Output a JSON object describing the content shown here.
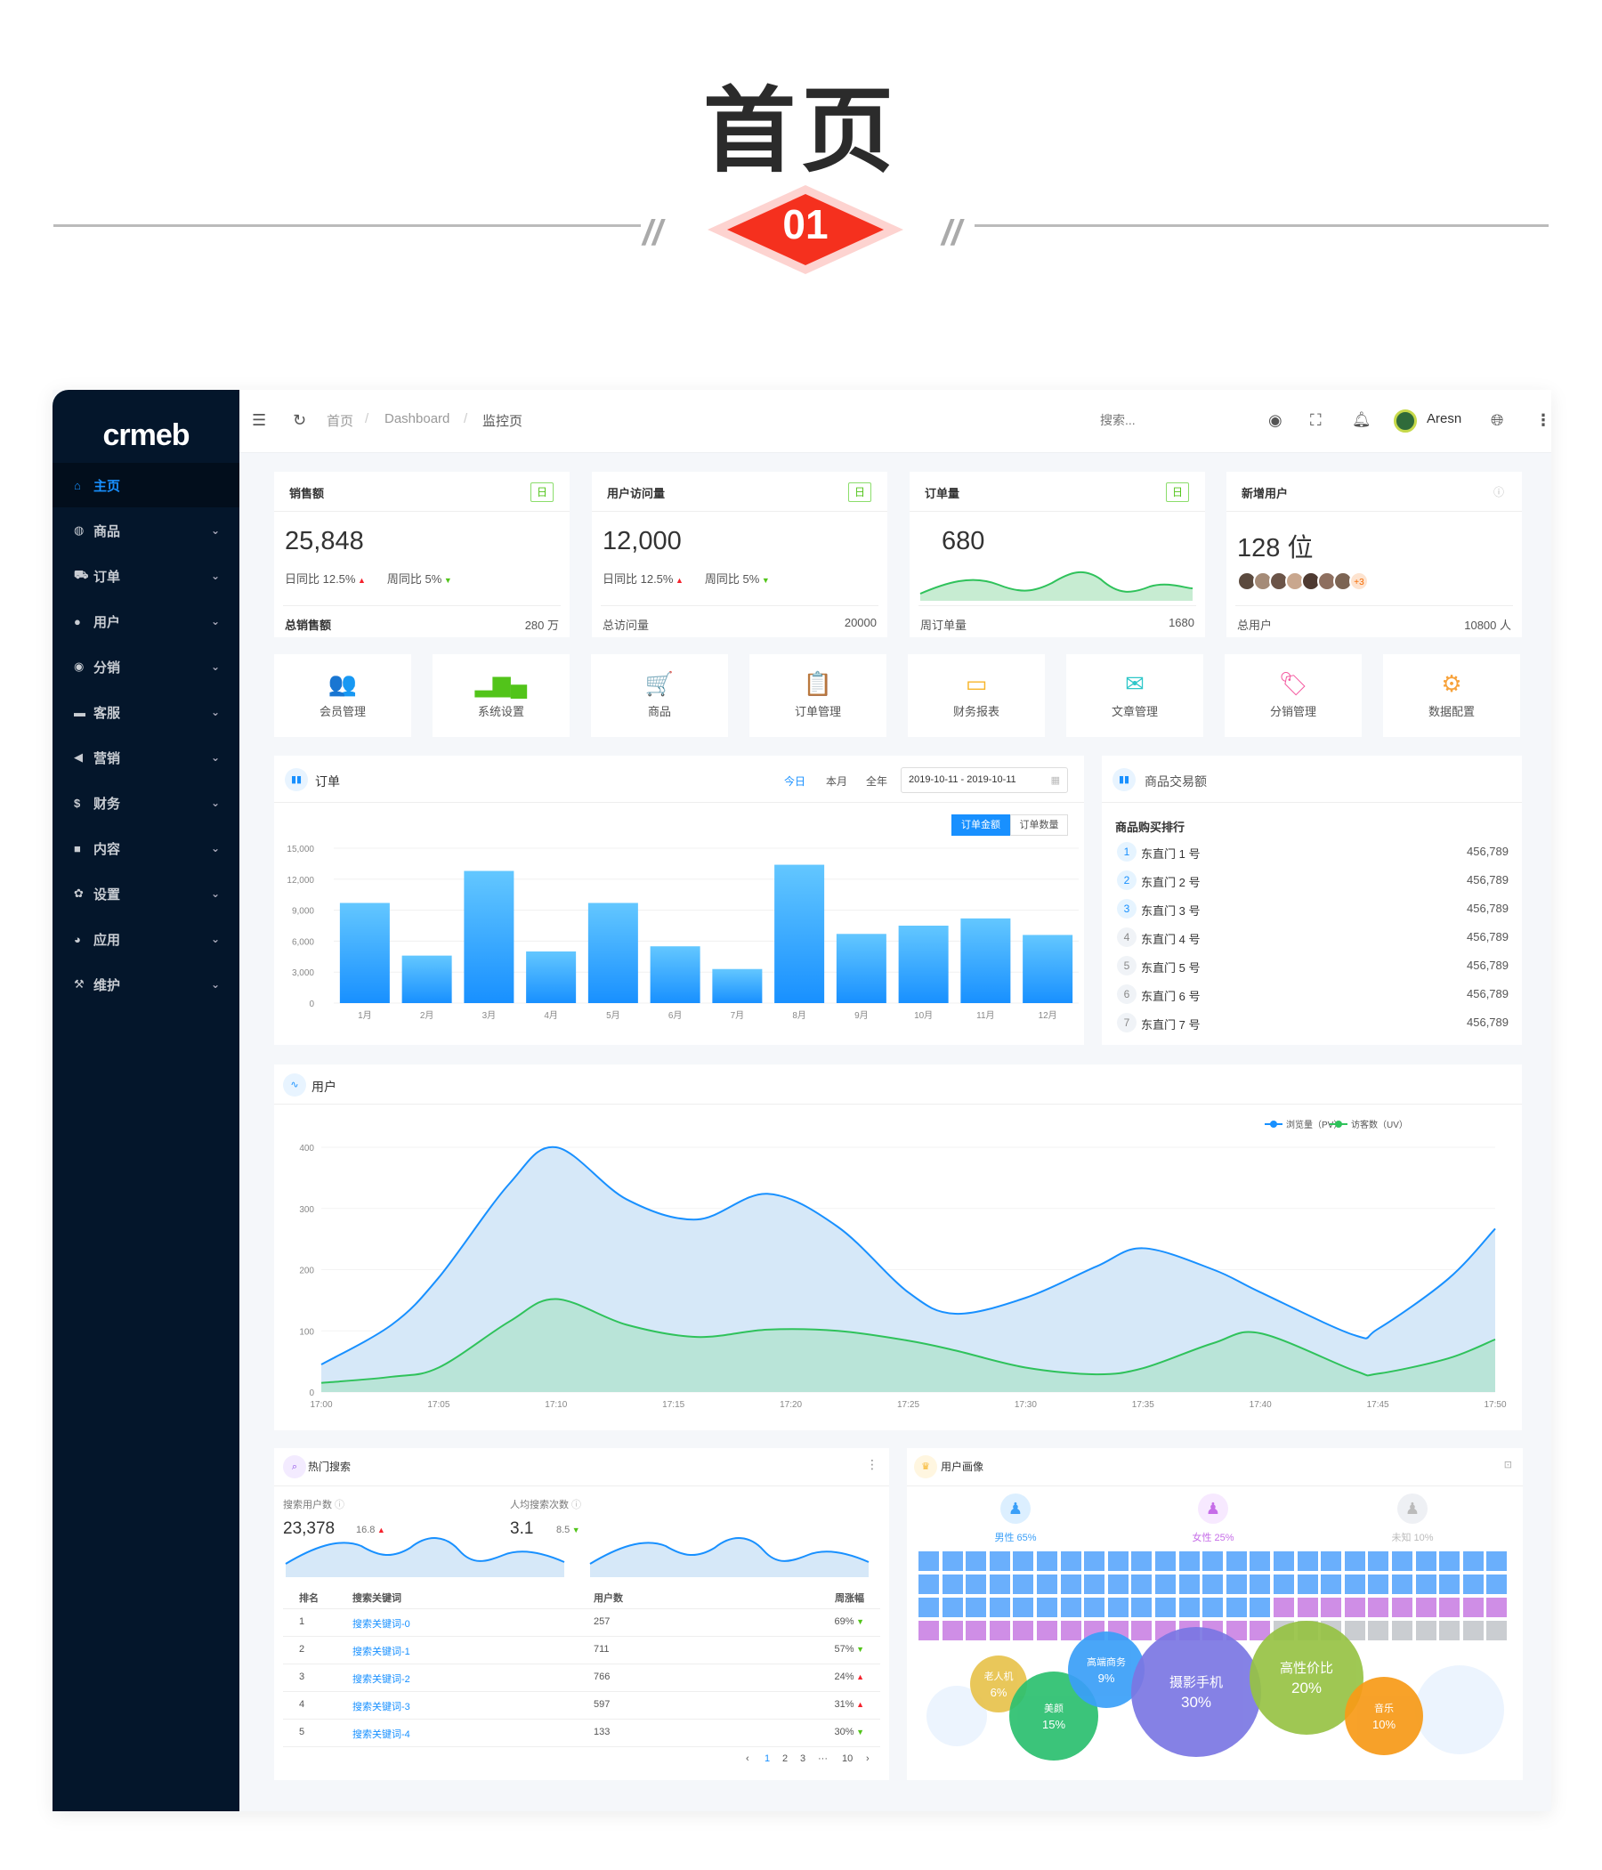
{
  "hero": {
    "title": "首页",
    "number": "01",
    "accent": "#f5301e"
  },
  "sidebar": {
    "logo": "crmeb",
    "items": [
      {
        "label": "主页",
        "icon": "home-icon",
        "glyph": "⌂",
        "active": true
      },
      {
        "label": "商品",
        "icon": "goods-icon",
        "glyph": "◍"
      },
      {
        "label": "订单",
        "icon": "cart-icon",
        "glyph": "⛟"
      },
      {
        "label": "用户",
        "icon": "user-icon",
        "glyph": "●"
      },
      {
        "label": "分销",
        "icon": "distribution-icon",
        "glyph": "◉"
      },
      {
        "label": "客服",
        "icon": "chat-icon",
        "glyph": "▬"
      },
      {
        "label": "营销",
        "icon": "send-icon",
        "glyph": "◀"
      },
      {
        "label": "财务",
        "icon": "dollar-icon",
        "glyph": "$"
      },
      {
        "label": "内容",
        "icon": "book-icon",
        "glyph": "■"
      },
      {
        "label": "设置",
        "icon": "gear-icon",
        "glyph": "✿"
      },
      {
        "label": "应用",
        "icon": "app-icon",
        "glyph": "◕"
      },
      {
        "label": "维护",
        "icon": "hammer-icon",
        "glyph": "⚒"
      }
    ]
  },
  "topbar": {
    "breadcrumb": [
      "首页",
      "Dashboard",
      "监控页"
    ],
    "search_placeholder": "搜索...",
    "user": "Aresn"
  },
  "stats": [
    {
      "title": "销售额",
      "tag": "日",
      "value": "25,848",
      "day": "日同比 12.5%",
      "week": "周同比 5%",
      "foot_label": "总销售额",
      "foot_value": "280 万"
    },
    {
      "title": "用户访问量",
      "tag": "日",
      "value": "12,000",
      "day": "日同比 12.5%",
      "week": "周同比 5%",
      "foot_label": "总访问量",
      "foot_value": "20000"
    },
    {
      "title": "订单量",
      "tag": "日",
      "value": "680",
      "foot_label": "周订单量",
      "foot_value": "1680"
    },
    {
      "title": "新增用户",
      "value": "128 位",
      "extra": "+3",
      "foot_label": "总用户",
      "foot_value": "10800 人"
    }
  ],
  "shortcuts": [
    {
      "label": "会员管理",
      "icon": "members-icon",
      "glyph": "👥",
      "color": "#3a9ff8"
    },
    {
      "label": "系统设置",
      "icon": "bar-chart-icon",
      "glyph": "▂▆▄",
      "color": "#52c41a"
    },
    {
      "label": "商品",
      "icon": "cart-icon",
      "glyph": "🛒",
      "color": "#fa7d3c"
    },
    {
      "label": "订单管理",
      "icon": "clipboard-icon",
      "glyph": "📋",
      "color": "#b062f0"
    },
    {
      "label": "财务报表",
      "icon": "card-icon",
      "glyph": "▭",
      "color": "#f7b52b"
    },
    {
      "label": "文章管理",
      "icon": "mail-icon",
      "glyph": "✉",
      "color": "#2ec7c9"
    },
    {
      "label": "分销管理",
      "icon": "tag-icon",
      "glyph": "🏷",
      "color": "#f45aa0"
    },
    {
      "label": "数据配置",
      "icon": "toggle-icon",
      "glyph": "⚙",
      "color": "#f7a23b"
    }
  ],
  "orders": {
    "title": "订单",
    "ranges": [
      "今日",
      "本月",
      "全年"
    ],
    "date_range": "2019-10-11 - 2019-10-11",
    "toggles": [
      "订单金额",
      "订单数量"
    ]
  },
  "chart_data": [
    {
      "type": "bar",
      "categories": [
        "1月",
        "2月",
        "3月",
        "4月",
        "5月",
        "6月",
        "7月",
        "8月",
        "9月",
        "10月",
        "11月",
        "12月"
      ],
      "values": [
        9700,
        4600,
        12800,
        5000,
        9700,
        5500,
        3300,
        13400,
        6700,
        7500,
        8200,
        6600
      ],
      "ylim": [
        0,
        15000
      ],
      "yticks": [
        "0",
        "3,000",
        "6,000",
        "9,000",
        "12,000",
        "15,000"
      ],
      "grid": true,
      "color": "#1890ff"
    },
    {
      "type": "area",
      "title": "用户",
      "x": [
        "17:00",
        "17:03",
        "17:05",
        "17:08",
        "17:10",
        "17:13",
        "17:16",
        "17:19",
        "17:22",
        "17:25",
        "17:27",
        "17:30",
        "17:33",
        "17:35",
        "17:38",
        "17:40",
        "17:44",
        "17:45",
        "17:48",
        "17:50"
      ],
      "xticks": [
        "17:00",
        "17:05",
        "17:10",
        "17:15",
        "17:20",
        "17:25",
        "17:30",
        "17:35",
        "17:40",
        "17:45",
        "17:50"
      ],
      "yticks": [
        "0",
        "100",
        "200",
        "300",
        "400"
      ],
      "ylim": [
        0,
        400
      ],
      "legend": "top-right",
      "series": [
        {
          "name": "浏览量（PV）",
          "color": "#1890ff",
          "values": [
            45,
            110,
            187,
            340,
            400,
            315,
            282,
            324,
            270,
            163,
            128,
            154,
            205,
            235,
            200,
            163,
            93,
            103,
            185,
            267
          ]
        },
        {
          "name": "访客数（UV）",
          "color": "#2fc25b",
          "values": [
            15,
            25,
            40,
            115,
            152,
            110,
            90,
            102,
            100,
            84,
            68,
            40,
            29,
            39,
            80,
            96,
            35,
            30,
            55,
            86
          ]
        }
      ]
    }
  ],
  "goods": {
    "title": "商品交易额",
    "subtitle": "商品购买排行",
    "rows": [
      {
        "rank": "1",
        "name": "东直门 1 号",
        "value": "456,789"
      },
      {
        "rank": "2",
        "name": "东直门 2 号",
        "value": "456,789"
      },
      {
        "rank": "3",
        "name": "东直门 3 号",
        "value": "456,789"
      },
      {
        "rank": "4",
        "name": "东直门 4 号",
        "value": "456,789"
      },
      {
        "rank": "5",
        "name": "东直门 5 号",
        "value": "456,789"
      },
      {
        "rank": "6",
        "name": "东直门 6 号",
        "value": "456,789"
      },
      {
        "rank": "7",
        "name": "东直门 7 号",
        "value": "456,789"
      }
    ]
  },
  "hot_search": {
    "title": "热门搜索",
    "metrics": [
      {
        "label": "搜索用户数",
        "value": "23,378",
        "delta": "16.8",
        "trend": "up"
      },
      {
        "label": "人均搜索次数",
        "value": "3.1",
        "delta": "8.5",
        "trend": "down"
      }
    ],
    "columns": [
      "排名",
      "搜索关键词",
      "用户数",
      "周涨幅"
    ],
    "rows": [
      {
        "rank": "1",
        "kw": "搜索关键词-0",
        "users": "257",
        "change": "69%",
        "trend": "down"
      },
      {
        "rank": "2",
        "kw": "搜索关键词-1",
        "users": "711",
        "change": "57%",
        "trend": "down"
      },
      {
        "rank": "3",
        "kw": "搜索关键词-2",
        "users": "766",
        "change": "24%",
        "trend": "up"
      },
      {
        "rank": "4",
        "kw": "搜索关键词-3",
        "users": "597",
        "change": "31%",
        "trend": "up"
      },
      {
        "rank": "5",
        "kw": "搜索关键词-4",
        "users": "133",
        "change": "30%",
        "trend": "down"
      }
    ],
    "pagination": [
      "‹",
      "1",
      "2",
      "3",
      "···",
      "10",
      "›"
    ],
    "current_page": "1"
  },
  "portrait": {
    "title": "用户画像",
    "genders": [
      {
        "label": "男性 65%",
        "percent": 65,
        "color": "#3a9ff8",
        "bg": "#dcefff"
      },
      {
        "label": "女性 25%",
        "percent": 25,
        "color": "#c66de8",
        "bg": "#f7e9ff"
      },
      {
        "label": "未知 10%",
        "percent": 10,
        "color": "#bbbbbb",
        "bg": "#eef0f4"
      }
    ],
    "bubbles": [
      {
        "label": "老人机",
        "value": "6%",
        "color": "#e8c34d"
      },
      {
        "label": "美颜",
        "value": "15%",
        "color": "#2bc06f"
      },
      {
        "label": "高端商务",
        "value": "9%",
        "color": "#3a9ff8"
      },
      {
        "label": "摄影手机",
        "value": "30%",
        "color": "#7b77e3"
      },
      {
        "label": "高性价比",
        "value": "20%",
        "color": "#97c345"
      },
      {
        "label": "音乐",
        "value": "10%",
        "color": "#f79a17"
      }
    ]
  }
}
